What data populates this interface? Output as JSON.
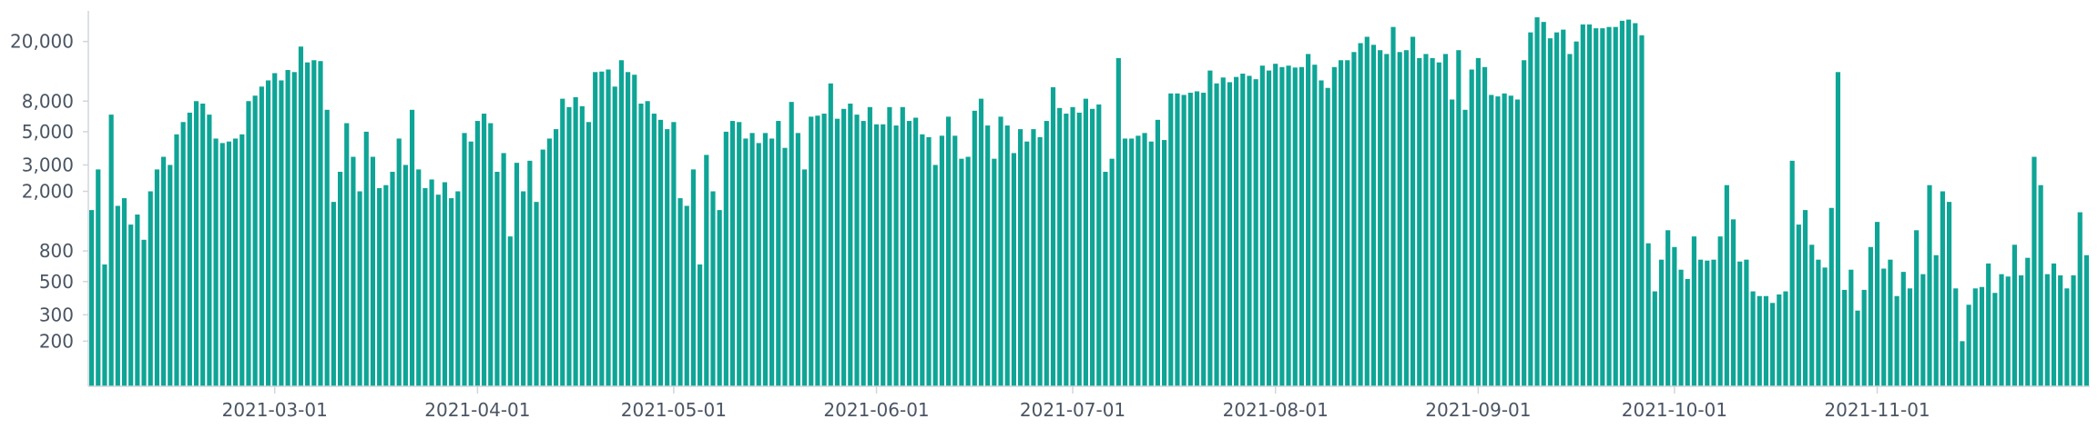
{
  "chart_data": {
    "type": "bar",
    "title": "",
    "xlabel": "",
    "ylabel": "",
    "y_scale": "log",
    "grid": false,
    "bar_color": "#0ea596",
    "x_start_date": "2021-02-01",
    "y_ticks": [
      {
        "value": 200,
        "label": "200"
      },
      {
        "value": 300,
        "label": "300"
      },
      {
        "value": 500,
        "label": "500"
      },
      {
        "value": 800,
        "label": "800"
      },
      {
        "value": 2000,
        "label": "2,000"
      },
      {
        "value": 3000,
        "label": "3,000"
      },
      {
        "value": 5000,
        "label": "5,000"
      },
      {
        "value": 8000,
        "label": "8,000"
      },
      {
        "value": 20000,
        "label": "20,000"
      }
    ],
    "x_ticks": [
      {
        "date": "2021-03-01",
        "label": "2021-03-01"
      },
      {
        "date": "2021-04-01",
        "label": "2021-04-01"
      },
      {
        "date": "2021-05-01",
        "label": "2021-05-01"
      },
      {
        "date": "2021-06-01",
        "label": "2021-06-01"
      },
      {
        "date": "2021-07-01",
        "label": "2021-07-01"
      },
      {
        "date": "2021-08-01",
        "label": "2021-08-01"
      },
      {
        "date": "2021-09-01",
        "label": "2021-09-01"
      },
      {
        "date": "2021-10-01",
        "label": "2021-10-01"
      },
      {
        "date": "2021-11-01",
        "label": "2021-11-01"
      }
    ],
    "values": [
      1500,
      2800,
      650,
      6500,
      1600,
      1800,
      1200,
      1400,
      950,
      2000,
      2800,
      3400,
      3000,
      4800,
      5800,
      6700,
      8000,
      7700,
      6500,
      4500,
      4200,
      4300,
      4500,
      4800,
      8000,
      8700,
      10000,
      11000,
      12300,
      11000,
      12900,
      12500,
      18500,
      14500,
      15000,
      14800,
      7000,
      1700,
      2700,
      5700,
      3400,
      2000,
      5000,
      3400,
      2100,
      2200,
      2700,
      4500,
      3000,
      7000,
      2800,
      2100,
      2400,
      1900,
      2300,
      1800,
      2000,
      4900,
      4300,
      5900,
      6600,
      5700,
      2700,
      3600,
      1000,
      3100,
      2000,
      3200,
      1700,
      3800,
      4500,
      5200,
      8300,
      7300,
      8500,
      7400,
      5800,
      12500,
      12600,
      13000,
      10000,
      15000,
      12500,
      12000,
      7700,
      8000,
      6600,
      6000,
      5200,
      5800,
      1800,
      1600,
      2800,
      650,
      3500,
      2000,
      1500,
      5000,
      5900,
      5800,
      4500,
      4900,
      4200,
      4900,
      4500,
      5900,
      3900,
      7900,
      4900,
      2800,
      6300,
      6400,
      6600,
      10500,
      6100,
      7100,
      7700,
      6500,
      5900,
      7300,
      5600,
      5600,
      7300,
      5500,
      7300,
      5900,
      6200,
      4800,
      4600,
      3000,
      4700,
      6300,
      4700,
      3300,
      3400,
      6900,
      8300,
      5500,
      3300,
      6300,
      5500,
      3600,
      5200,
      4300,
      5200,
      4600,
      5900,
      9900,
      7200,
      6600,
      7300,
      6700,
      8300,
      7100,
      7600,
      2700,
      3300,
      15500,
      4500,
      4500,
      4700,
      4900,
      4300,
      6000,
      4400,
      9000,
      9000,
      8800,
      9100,
      9300,
      9100,
      12800,
      10500,
      11500,
      10700,
      11600,
      12200,
      11800,
      11200,
      13800,
      12800,
      14200,
      13500,
      13800,
      13400,
      13500,
      16500,
      14000,
      11000,
      9800,
      13500,
      15000,
      15000,
      17000,
      19500,
      21500,
      19000,
      17500,
      16500,
      25000,
      17000,
      17500,
      21500,
      15500,
      16500,
      15500,
      14500,
      16500,
      8200,
      17500,
      7000,
      13000,
      15500,
      13500,
      8800,
      8600,
      9000,
      8700,
      8200,
      15000,
      23000,
      29000,
      27000,
      21000,
      23000,
      24000,
      16500,
      20000,
      26000,
      26000,
      24500,
      24500,
      25000,
      25000,
      27500,
      28000,
      26500,
      22000,
      900,
      430,
      700,
      1100,
      850,
      600,
      520,
      1000,
      700,
      690,
      700,
      1000,
      2200,
      1300,
      680,
      700,
      430,
      400,
      400,
      360,
      410,
      430,
      3200,
      1200,
      1500,
      880,
      700,
      620,
      1550,
      12500,
      440,
      600,
      320,
      440,
      850,
      1250,
      610,
      700,
      400,
      580,
      450,
      1100,
      560,
      2200,
      750,
      2000,
      1700,
      450,
      200,
      350,
      450,
      460,
      660,
      420,
      560,
      540,
      880,
      550,
      720,
      3400,
      2200,
      560,
      660,
      550,
      450,
      550,
      1450,
      750
    ]
  }
}
